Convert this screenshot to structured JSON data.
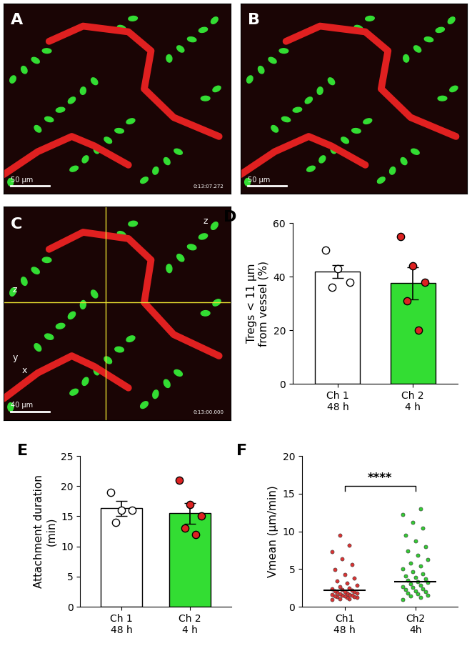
{
  "panel_labels": [
    "A",
    "B",
    "C",
    "D",
    "E",
    "F"
  ],
  "images": [
    {
      "scale_text": "50 μm",
      "time_text": "0:13:07.272"
    },
    {
      "scale_text": "50 μm",
      "time_text": ""
    },
    {
      "scale_text": "40 μm",
      "time_text": "0:13:00.000",
      "axis_texts": [
        "x",
        "y",
        "z",
        "z"
      ]
    }
  ],
  "chart_data": [
    {
      "type": "bar",
      "ylabel": "Tregs < 11 μm\nfrom vessel (%)",
      "categories": [
        "Ch 1\n48 h",
        "Ch 2\n4 h"
      ],
      "values": [
        42,
        37.5
      ],
      "errors": [
        2.4,
        6.0
      ],
      "points": [
        [
          50,
          43,
          38,
          36
        ],
        [
          55,
          44,
          38,
          31,
          20
        ]
      ],
      "colors": [
        "#ffffff",
        "#33dd33"
      ],
      "ylim": [
        0,
        60
      ],
      "yticks": [
        0,
        20,
        40,
        60
      ]
    },
    {
      "type": "bar",
      "ylabel": "Attachment duration\n(min)",
      "categories": [
        "Ch 1\n48 h",
        "Ch 2\n4 h"
      ],
      "values": [
        16.3,
        15.5
      ],
      "errors": [
        1.2,
        1.7
      ],
      "points": [
        [
          19,
          16,
          16,
          14
        ],
        [
          21,
          17,
          15,
          13,
          12
        ]
      ],
      "colors": [
        "#ffffff",
        "#33dd33"
      ],
      "ylim": [
        0,
        25
      ],
      "yticks": [
        0,
        5,
        10,
        15,
        20,
        25
      ]
    },
    {
      "type": "scatter",
      "ylabel": "Vmean (μm/min)",
      "categories": [
        "Ch1\n48 h",
        "Ch2\n4h"
      ],
      "means": [
        2.2,
        3.3
      ],
      "points": [
        [
          1.0,
          1.1,
          1.1,
          1.2,
          1.2,
          1.3,
          1.3,
          1.4,
          1.4,
          1.5,
          1.5,
          1.6,
          1.6,
          1.7,
          1.8,
          1.8,
          1.9,
          2.0,
          2.0,
          2.1,
          2.2,
          2.3,
          2.4,
          2.5,
          2.7,
          2.9,
          3.1,
          3.4,
          3.8,
          4.3,
          4.9,
          5.6,
          6.4,
          7.3,
          8.2,
          9.5
        ],
        [
          1.0,
          1.2,
          1.4,
          1.5,
          1.7,
          1.8,
          2.0,
          2.1,
          2.3,
          2.4,
          2.6,
          2.7,
          2.9,
          3.0,
          3.2,
          3.3,
          3.5,
          3.7,
          3.9,
          4.1,
          4.4,
          4.7,
          5.0,
          5.4,
          5.8,
          6.3,
          6.8,
          7.4,
          8.0,
          8.7,
          9.5,
          10.4,
          11.2,
          12.2,
          13.0
        ]
      ],
      "colors": [
        "#dd3333",
        "#33cc33"
      ],
      "annotations": [
        {
          "text": "****"
        }
      ],
      "ylim": [
        0,
        20
      ],
      "yticks": [
        0,
        5,
        10,
        15,
        20
      ]
    }
  ]
}
